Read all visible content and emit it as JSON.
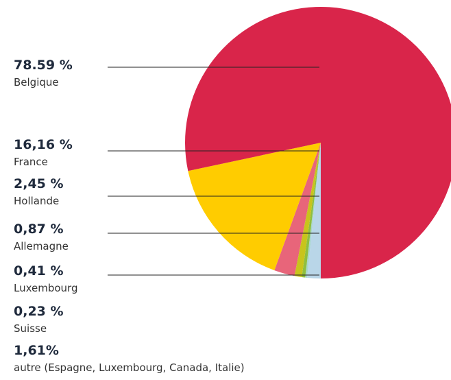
{
  "chart_data": {
    "type": "pie",
    "categories": [
      "Belgique",
      "France",
      "Hollande",
      "Allemagne",
      "Luxembourg",
      "Suisse",
      "autre (Espagne, Luxembourg, Canada, Italie)"
    ],
    "values": [
      78.59,
      16.16,
      2.45,
      0.87,
      0.41,
      0.23,
      1.61
    ],
    "value_labels": [
      "78.59  %",
      "16,16 %",
      "2,45 %",
      "0,87 %",
      "0,41 %",
      "0,23 %",
      "1,61%"
    ],
    "colors": [
      "#d9254a",
      "#ffcc00",
      "#e8657a",
      "#c8c41c",
      "#8fbf3f",
      "#a8d6cc",
      "#b9d6e8"
    ]
  }
}
